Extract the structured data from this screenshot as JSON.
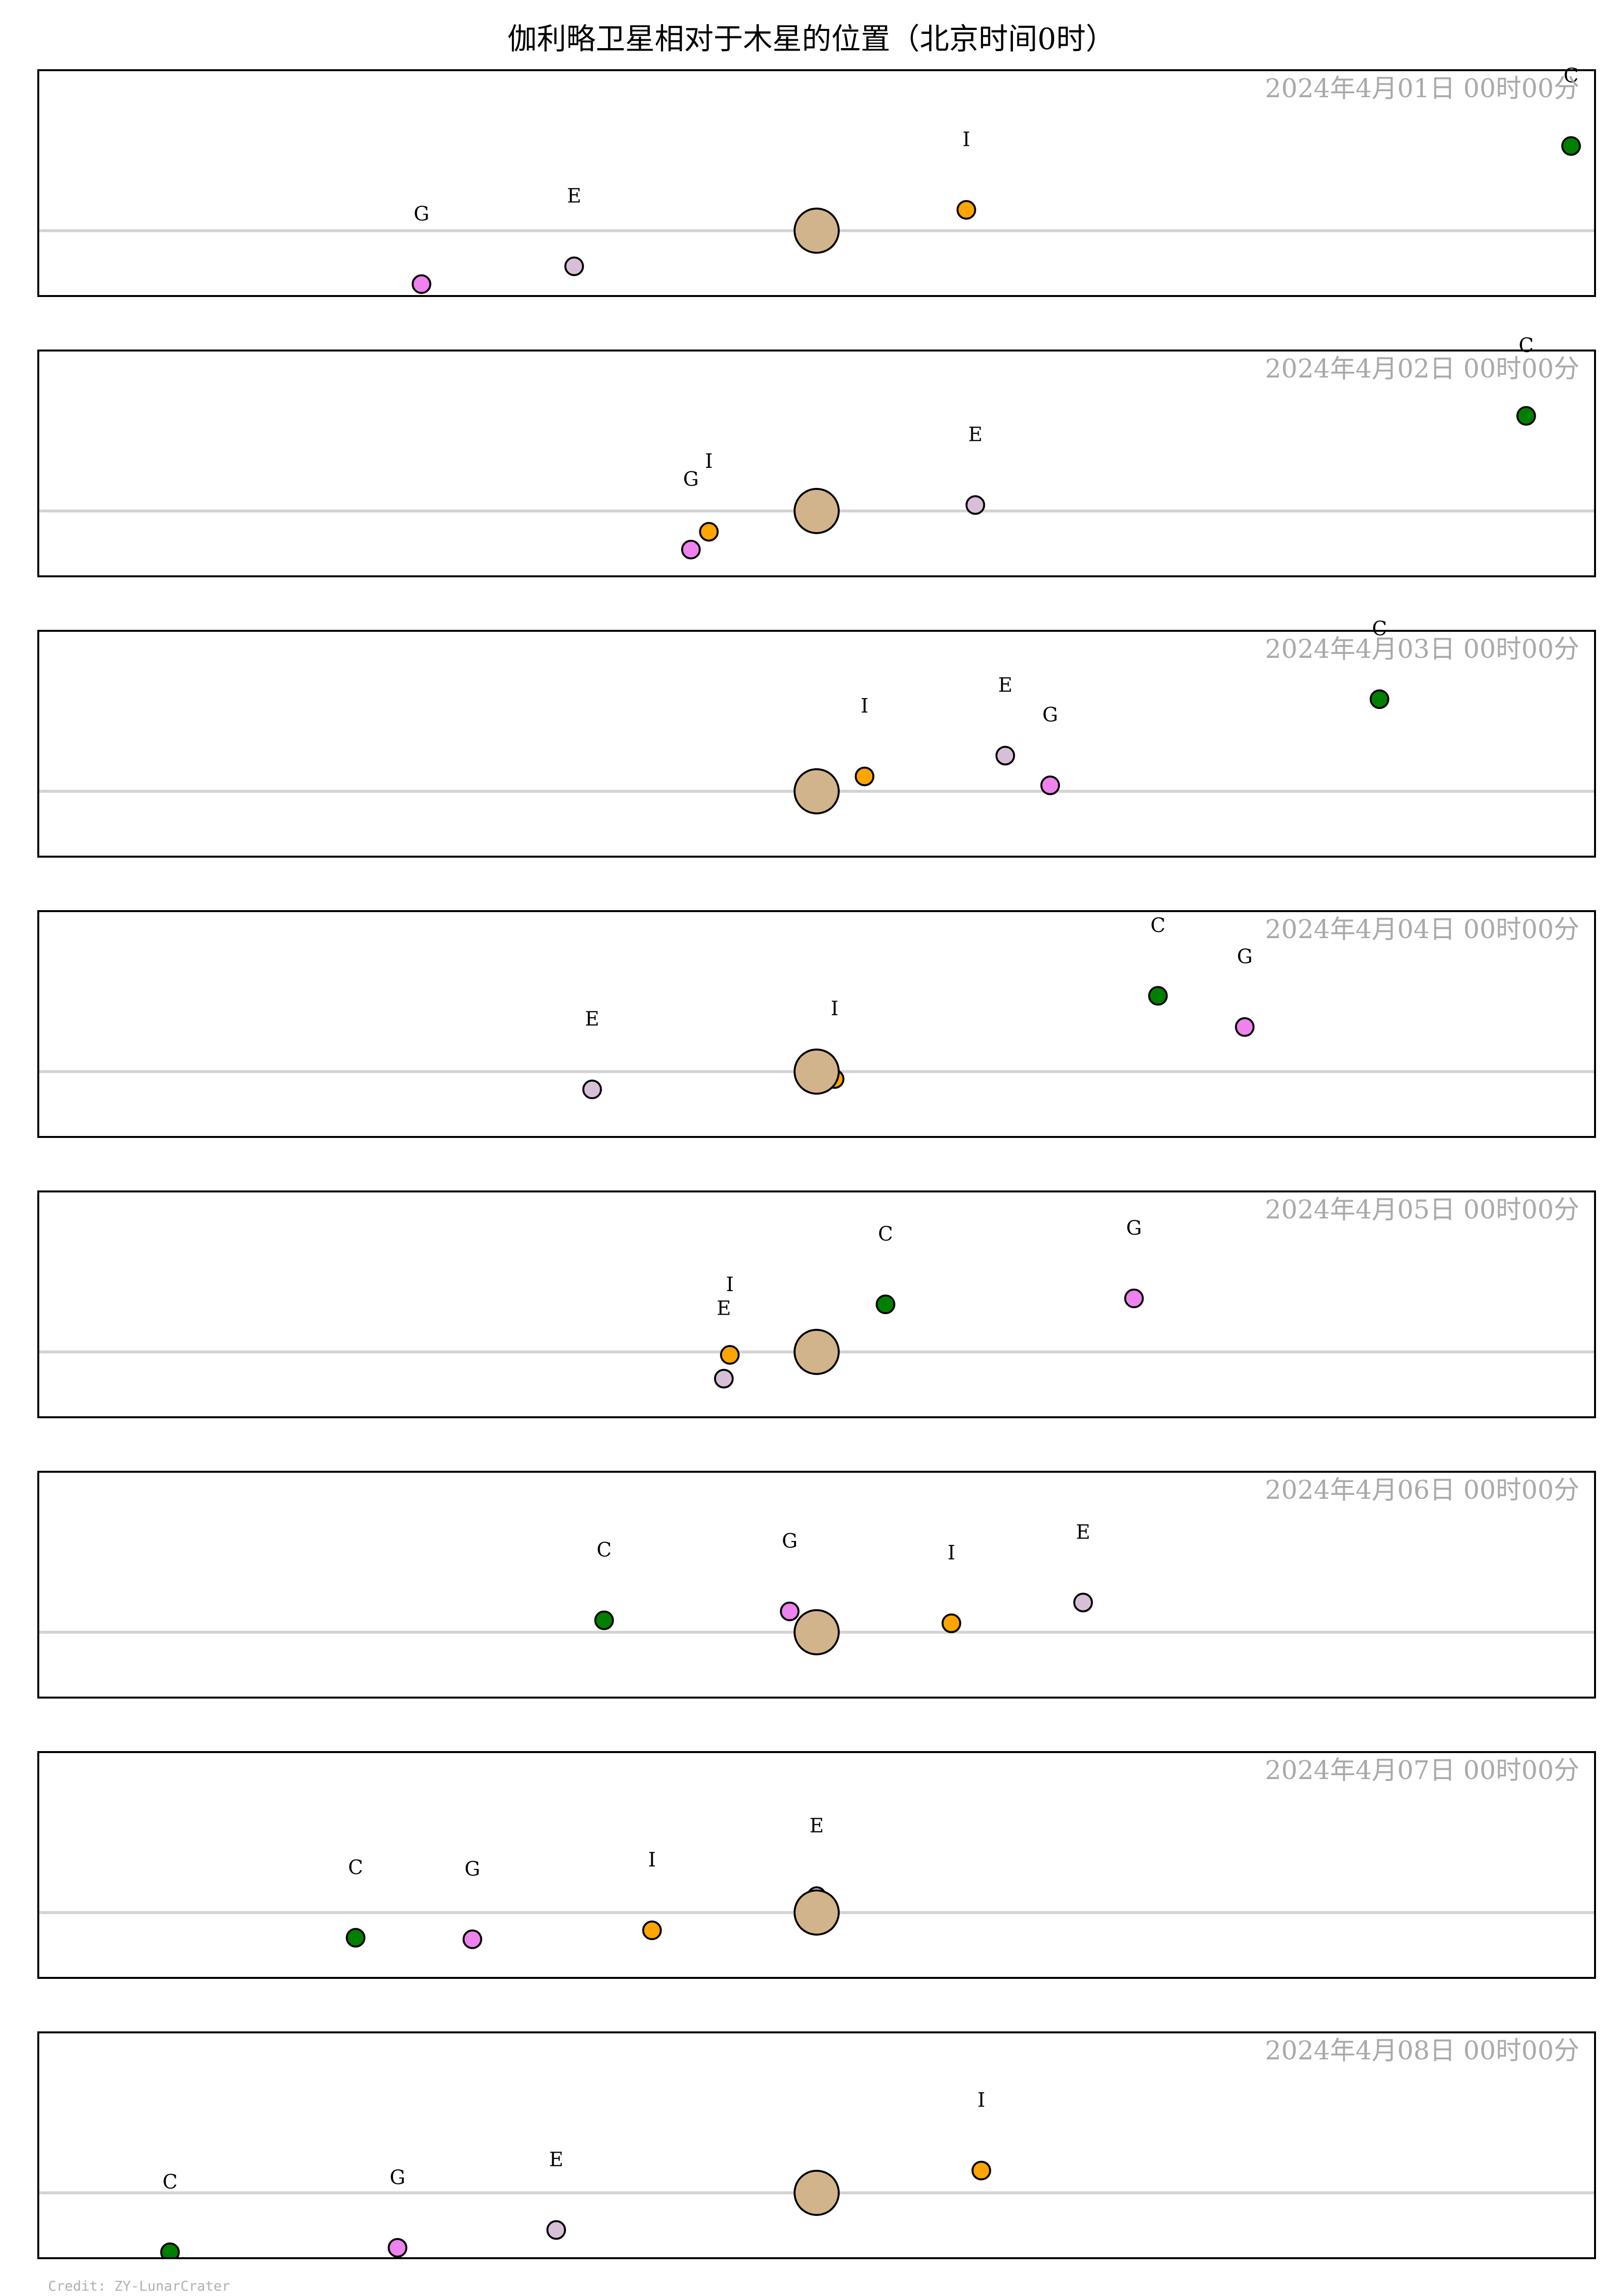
{
  "title": "伽利略卫星相对于木星的位置（北京时间0时）",
  "credit": "Credit: ZY-LunarCrater",
  "colors": {
    "jupiter": "#d2b48c",
    "I": "#ffa500",
    "E": "#d8bfd8",
    "G": "#ee82ee",
    "C": "#008000",
    "axis_line": "#d3d3d3",
    "date_text": "#a9a9a9",
    "frame": "#000000"
  },
  "chart_data": {
    "type": "scatter",
    "xlim": [
      -26,
      26
    ],
    "ylim": [
      -2.2,
      5.4
    ],
    "x_unit": "Jupiter radii (east-west offset)",
    "moon_order": [
      "I",
      "E",
      "G",
      "C"
    ],
    "panels": [
      {
        "date": "2024年4月01日  00时00分",
        "moons": {
          "I": [
            5.0,
            0.7
          ],
          "E": [
            -8.1,
            -1.2
          ],
          "G": [
            -13.2,
            -1.8
          ],
          "C": [
            25.2,
            2.85
          ]
        }
      },
      {
        "date": "2024年4月02日  00时00分",
        "moons": {
          "I": [
            -3.6,
            -0.7
          ],
          "E": [
            5.3,
            0.2
          ],
          "G": [
            -4.2,
            -1.3
          ],
          "C": [
            23.7,
            3.2
          ]
        }
      },
      {
        "date": "2024年4月03日  00时00分",
        "moons": {
          "I": [
            1.6,
            0.5
          ],
          "E": [
            6.3,
            1.2
          ],
          "G": [
            7.8,
            0.2
          ],
          "C": [
            18.8,
            3.1
          ]
        }
      },
      {
        "date": "2024年4月04日  00时00分",
        "moons": {
          "I": [
            0.6,
            -0.25
          ],
          "E": [
            -7.5,
            -0.6
          ],
          "G": [
            14.3,
            1.5
          ],
          "C": [
            11.4,
            2.55
          ]
        }
      },
      {
        "date": "2024年4月05日  00时00分",
        "moons": {
          "I": [
            -2.9,
            -0.1
          ],
          "E": [
            -3.1,
            -0.9
          ],
          "G": [
            10.6,
            1.8
          ],
          "C": [
            2.3,
            1.6
          ]
        }
      },
      {
        "date": "2024年4月06日  00时00分",
        "moons": {
          "I": [
            4.5,
            0.3
          ],
          "E": [
            8.9,
            1.0
          ],
          "G": [
            -0.9,
            0.7
          ],
          "C": [
            -7.1,
            0.4
          ]
        }
      },
      {
        "date": "2024年4月07日  00时00分",
        "moons": {
          "I": [
            -5.5,
            -0.6
          ],
          "E": [
            0.0,
            0.55
          ],
          "G": [
            -11.5,
            -0.9
          ],
          "C": [
            -15.4,
            -0.85
          ]
        }
      },
      {
        "date": "2024年4月08日  00时00分",
        "moons": {
          "I": [
            5.5,
            0.75
          ],
          "E": [
            -8.7,
            -1.25
          ],
          "G": [
            -14.0,
            -1.85
          ],
          "C": [
            -21.6,
            -2.0
          ]
        }
      }
    ]
  }
}
